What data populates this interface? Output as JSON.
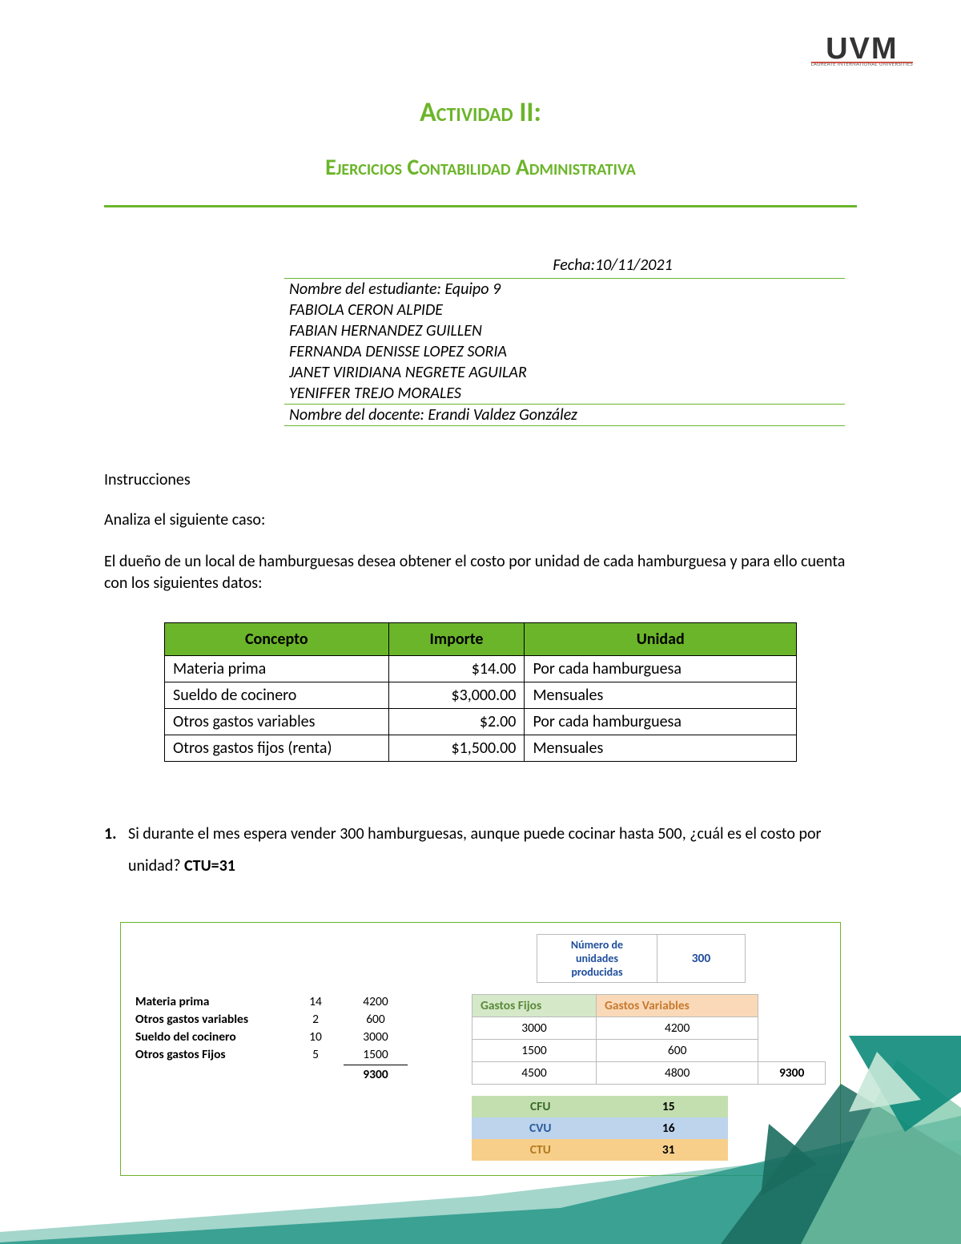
{
  "logo": {
    "brand": "UVM",
    "subtitle": "LAUREATE INTERNATIONAL UNIVERSITIES"
  },
  "titles": {
    "main": "Actividad II:",
    "sub": "Ejercicios Contabilidad Administrativa"
  },
  "info": {
    "fecha_label": "Fecha:",
    "fecha": "10/11/2021",
    "estudiante_label": "Nombre del estudiante: ",
    "estudiante": "Equipo 9",
    "members": [
      "FABIOLA CERON ALPIDE",
      "FABIAN HERNANDEZ GUILLEN",
      "FERNANDA DENISSE LOPEZ SORIA",
      "JANET VIRIDIANA NEGRETE AGUILAR",
      "YENIFFER TREJO MORALES"
    ],
    "docente_label": "Nombre del docente: ",
    "docente": "Erandi Valdez González"
  },
  "sections": {
    "instrucciones": "Instrucciones",
    "analiza": "Analiza el siguiente caso:",
    "caso": "El dueño de un local de hamburguesas desea obtener el costo por unidad de cada hamburguesa y para ello cuenta con los siguientes datos:"
  },
  "table1": {
    "headers": {
      "concepto": "Concepto",
      "importe": "Importe",
      "unidad": "Unidad"
    },
    "rows": [
      {
        "concepto": "Materia prima",
        "importe": "$14.00",
        "unidad": "Por cada hamburguesa"
      },
      {
        "concepto": "Sueldo de cocinero",
        "importe": "$3,000.00",
        "unidad": "Mensuales"
      },
      {
        "concepto": "Otros gastos variables",
        "importe": "$2.00",
        "unidad": "Por cada hamburguesa"
      },
      {
        "concepto": "Otros gastos fijos (renta)",
        "importe": "$1,500.00",
        "unidad": "Mensuales"
      }
    ],
    "col_widths": [
      "280px",
      "170px",
      "340px"
    ],
    "header_bg": "#6bb52a"
  },
  "question1": {
    "num": "1.",
    "text": "Si durante el mes espera vender 300 hamburguesas, aunque puede cocinar hasta 500, ¿cuál es el costo por unidad?   ",
    "answer": "CTU=31"
  },
  "calc": {
    "units_label": "Número de unidades producidas",
    "units_value": "300",
    "left_rows": [
      {
        "label": "Materia prima",
        "v1": "14",
        "v2": "4200"
      },
      {
        "label": "Otros gastos variables",
        "v1": "2",
        "v2": "600"
      },
      {
        "label": "Sueldo del cocinero",
        "v1": "10",
        "v2": "3000"
      },
      {
        "label": "Otros gastos Fijos",
        "v1": "5",
        "v2": "1500"
      }
    ],
    "left_total": "9300",
    "gastos": {
      "h1": "Gastos Fijos",
      "h2": "Gastos Variables",
      "rows": [
        {
          "f": "3000",
          "v": "4200"
        },
        {
          "f": "1500",
          "v": "600"
        },
        {
          "f": "4500",
          "v": "4800"
        }
      ],
      "grand_total": "9300"
    },
    "metrics": [
      {
        "label": "CFU",
        "value": "15",
        "row_class": "m-cfu",
        "label_class": "m-cfu-l"
      },
      {
        "label": "CVU",
        "value": "16",
        "row_class": "m-cvu",
        "label_class": "m-cvu-l"
      },
      {
        "label": "CTU",
        "value": "31",
        "row_class": "m-ctu",
        "label_class": "m-ctu-l"
      }
    ]
  },
  "colors": {
    "green": "#6bb52a",
    "green_light": "#c3dfb0",
    "blue_light": "#bdd4ec",
    "orange_light": "#f7cf8a",
    "teal1": "#0d8a7a",
    "teal2": "#5ab5a0",
    "teal3": "#1a6b5e"
  }
}
